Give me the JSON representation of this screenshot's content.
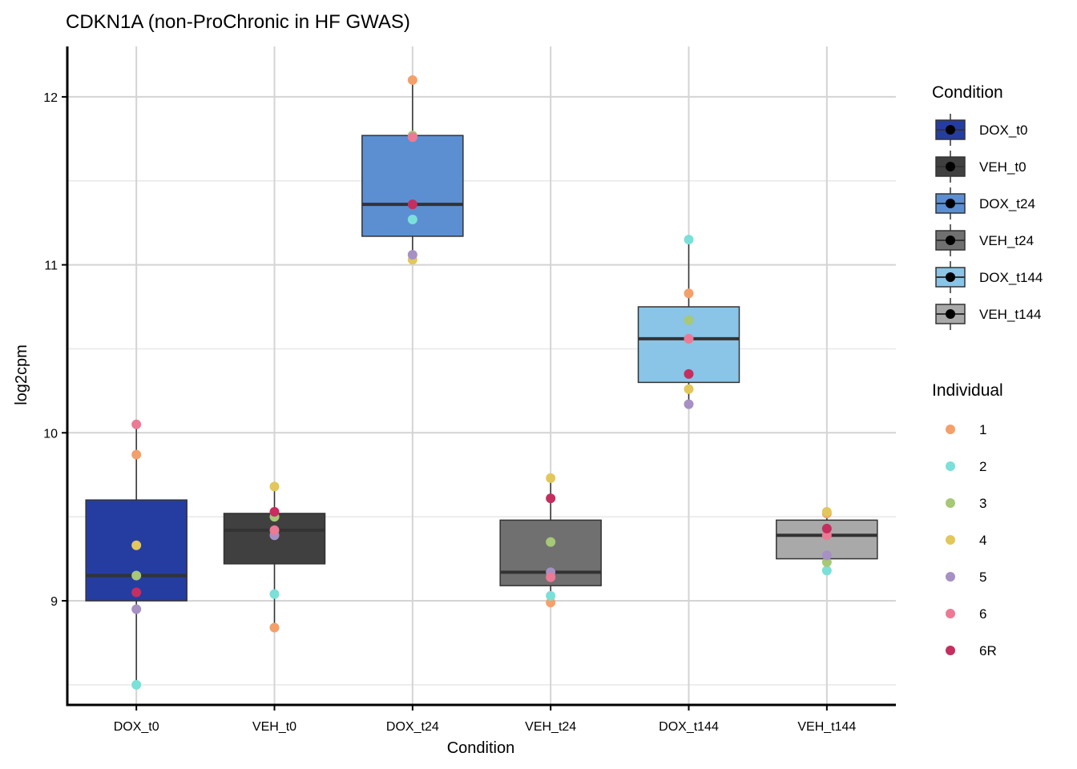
{
  "chart_data": {
    "type": "boxplot",
    "title": "CDKN1A (non-ProChronic in HF GWAS)",
    "xlabel": "Condition",
    "ylabel": "log2cpm",
    "ylim": [
      8.38,
      12.3
    ],
    "yticks": [
      9,
      10,
      11,
      12
    ],
    "ytick_labels": [
      "9",
      "10",
      "11",
      "12"
    ],
    "grid": true,
    "categories": [
      "DOX_t0",
      "VEH_t0",
      "DOX_t24",
      "VEH_t24",
      "DOX_t144",
      "VEH_t144"
    ],
    "box_colors": [
      "#253da1",
      "#404040",
      "#5b8fd1",
      "#707070",
      "#8ac4e6",
      "#a9a9a9"
    ],
    "boxes": [
      {
        "condition": "DOX_t0",
        "min": 8.5,
        "q1": 9.0,
        "median": 9.15,
        "q3": 9.6,
        "max": 10.05
      },
      {
        "condition": "VEH_t0",
        "min": 8.84,
        "q1": 9.22,
        "median": 9.42,
        "q3": 9.52,
        "max": 9.68
      },
      {
        "condition": "DOX_t24",
        "min": 11.03,
        "q1": 11.17,
        "median": 11.36,
        "q3": 11.77,
        "max": 12.1
      },
      {
        "condition": "VEH_t24",
        "min": 8.99,
        "q1": 9.09,
        "median": 9.17,
        "q3": 9.48,
        "max": 9.73
      },
      {
        "condition": "DOX_t144",
        "min": 10.17,
        "q1": 10.3,
        "median": 10.56,
        "q3": 10.75,
        "max": 11.15
      },
      {
        "condition": "VEH_t144",
        "min": 9.18,
        "q1": 9.25,
        "median": 9.39,
        "q3": 9.48,
        "max": 9.53
      }
    ],
    "individuals": [
      "1",
      "2",
      "3",
      "4",
      "5",
      "6",
      "6R"
    ],
    "individual_colors": [
      "#f4a06a",
      "#7ae0d8",
      "#a6c877",
      "#e2c75a",
      "#a690c4",
      "#ec7a94",
      "#c52e5f"
    ],
    "points": [
      {
        "condition": "DOX_t0",
        "individual": "1",
        "value": 9.87
      },
      {
        "condition": "DOX_t0",
        "individual": "2",
        "value": 8.5
      },
      {
        "condition": "DOX_t0",
        "individual": "3",
        "value": 9.15
      },
      {
        "condition": "DOX_t0",
        "individual": "4",
        "value": 9.33
      },
      {
        "condition": "DOX_t0",
        "individual": "5",
        "value": 8.95
      },
      {
        "condition": "DOX_t0",
        "individual": "6",
        "value": 10.05
      },
      {
        "condition": "DOX_t0",
        "individual": "6R",
        "value": 9.05
      },
      {
        "condition": "VEH_t0",
        "individual": "1",
        "value": 8.84
      },
      {
        "condition": "VEH_t0",
        "individual": "2",
        "value": 9.04
      },
      {
        "condition": "VEH_t0",
        "individual": "3",
        "value": 9.5
      },
      {
        "condition": "VEH_t0",
        "individual": "4",
        "value": 9.68
      },
      {
        "condition": "VEH_t0",
        "individual": "5",
        "value": 9.39
      },
      {
        "condition": "VEH_t0",
        "individual": "6",
        "value": 9.42
      },
      {
        "condition": "VEH_t0",
        "individual": "6R",
        "value": 9.53
      },
      {
        "condition": "DOX_t24",
        "individual": "1",
        "value": 12.1
      },
      {
        "condition": "DOX_t24",
        "individual": "2",
        "value": 11.27
      },
      {
        "condition": "DOX_t24",
        "individual": "3",
        "value": 11.77
      },
      {
        "condition": "DOX_t24",
        "individual": "4",
        "value": 11.03
      },
      {
        "condition": "DOX_t24",
        "individual": "5",
        "value": 11.06
      },
      {
        "condition": "DOX_t24",
        "individual": "6",
        "value": 11.76
      },
      {
        "condition": "DOX_t24",
        "individual": "6R",
        "value": 11.36
      },
      {
        "condition": "VEH_t24",
        "individual": "1",
        "value": 8.99
      },
      {
        "condition": "VEH_t24",
        "individual": "2",
        "value": 9.03
      },
      {
        "condition": "VEH_t24",
        "individual": "3",
        "value": 9.35
      },
      {
        "condition": "VEH_t24",
        "individual": "4",
        "value": 9.73
      },
      {
        "condition": "VEH_t24",
        "individual": "5",
        "value": 9.17
      },
      {
        "condition": "VEH_t24",
        "individual": "6",
        "value": 9.14
      },
      {
        "condition": "VEH_t24",
        "individual": "6R",
        "value": 9.61
      },
      {
        "condition": "DOX_t144",
        "individual": "1",
        "value": 10.83
      },
      {
        "condition": "DOX_t144",
        "individual": "2",
        "value": 11.15
      },
      {
        "condition": "DOX_t144",
        "individual": "3",
        "value": 10.67
      },
      {
        "condition": "DOX_t144",
        "individual": "4",
        "value": 10.26
      },
      {
        "condition": "DOX_t144",
        "individual": "5",
        "value": 10.17
      },
      {
        "condition": "DOX_t144",
        "individual": "6",
        "value": 10.56
      },
      {
        "condition": "DOX_t144",
        "individual": "6R",
        "value": 10.35
      },
      {
        "condition": "VEH_t144",
        "individual": "1",
        "value": 9.52
      },
      {
        "condition": "VEH_t144",
        "individual": "2",
        "value": 9.18
      },
      {
        "condition": "VEH_t144",
        "individual": "3",
        "value": 9.23
      },
      {
        "condition": "VEH_t144",
        "individual": "4",
        "value": 9.53
      },
      {
        "condition": "VEH_t144",
        "individual": "5",
        "value": 9.27
      },
      {
        "condition": "VEH_t144",
        "individual": "6",
        "value": 9.39
      },
      {
        "condition": "VEH_t144",
        "individual": "6R",
        "value": 9.43
      }
    ],
    "legend": [
      {
        "title": "Condition",
        "entries": [
          "DOX_t0",
          "VEH_t0",
          "DOX_t24",
          "VEH_t24",
          "DOX_t144",
          "VEH_t144"
        ]
      },
      {
        "title": "Individual",
        "entries": [
          "1",
          "2",
          "3",
          "4",
          "5",
          "6",
          "6R"
        ]
      }
    ],
    "legend_position": "right"
  }
}
